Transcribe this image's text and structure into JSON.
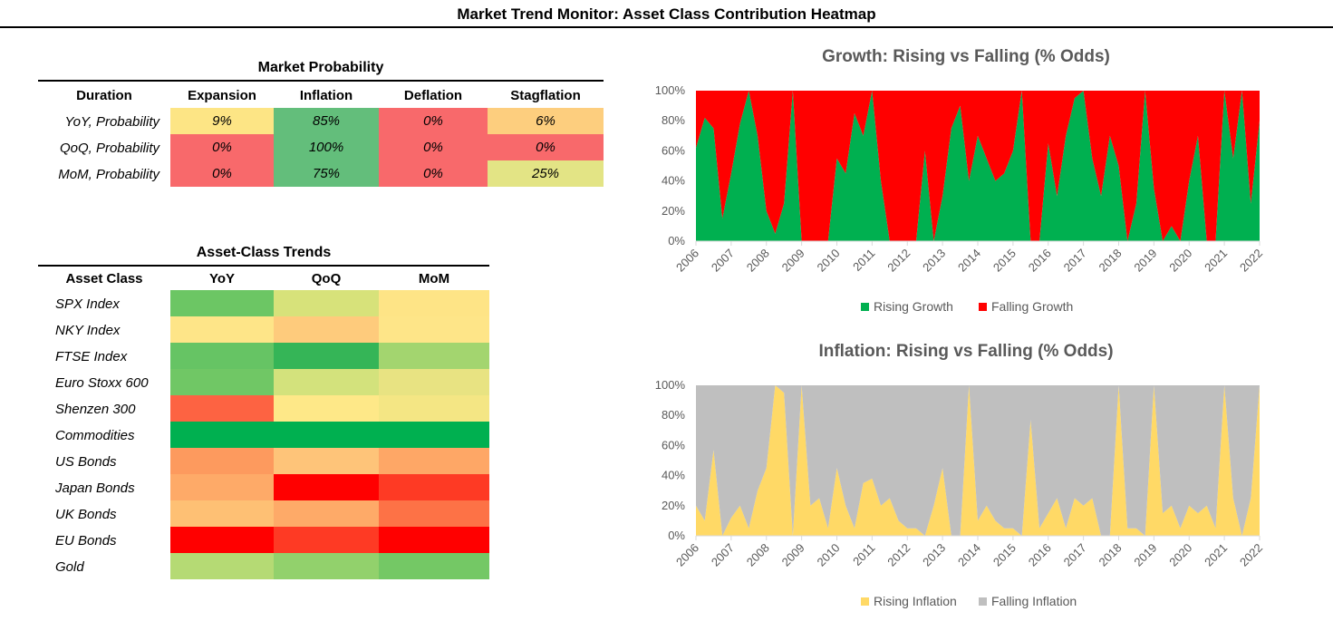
{
  "page_title": "Market Trend Monitor: Asset Class Contribution Heatmap",
  "market_probability": {
    "title": "Market Probability",
    "headers": [
      "Duration",
      "Expansion",
      "Inflation",
      "Deflation",
      "Stagflation"
    ],
    "rows": [
      {
        "label": "YoY, Probability",
        "values": [
          "9%",
          "85%",
          "0%",
          "6%"
        ],
        "colors": [
          "#FDE585",
          "#63BE7B",
          "#F8696B",
          "#FDCE7E"
        ]
      },
      {
        "label": "QoQ, Probability",
        "values": [
          "0%",
          "100%",
          "0%",
          "0%"
        ],
        "colors": [
          "#F8696B",
          "#63BE7B",
          "#F8696B",
          "#F8696B"
        ]
      },
      {
        "label": "MoM, Probability",
        "values": [
          "0%",
          "75%",
          "0%",
          "25%"
        ],
        "colors": [
          "#F8696B",
          "#63BE7B",
          "#F8696B",
          "#E3E485"
        ]
      }
    ]
  },
  "asset_class_trends": {
    "title": "Asset-Class Trends",
    "headers": [
      "Asset Class",
      "YoY",
      "QoQ",
      "MoM"
    ],
    "rows": [
      {
        "label": "SPX Index",
        "colors": [
          "#6CC664",
          "#D7E27A",
          "#FEE486"
        ]
      },
      {
        "label": "NKY Index",
        "colors": [
          "#FEE588",
          "#FECB7C",
          "#FEE588"
        ]
      },
      {
        "label": "FTSE Index",
        "colors": [
          "#66C464",
          "#35B557",
          "#A3D56F"
        ]
      },
      {
        "label": "Euro Stoxx 600",
        "colors": [
          "#70C765",
          "#D3E27C",
          "#E8E382"
        ]
      },
      {
        "label": "Shenzen 300",
        "colors": [
          "#FD6342",
          "#FEE888",
          "#F4E684"
        ]
      },
      {
        "label": "Commodities",
        "colors": [
          "#00B050",
          "#00B050",
          "#00B050"
        ]
      },
      {
        "label": "US Bonds",
        "colors": [
          "#FD9A5E",
          "#FEC479",
          "#FEA766"
        ]
      },
      {
        "label": "Japan Bonds",
        "colors": [
          "#FEAA68",
          "#FF0000",
          "#FE3A24"
        ]
      },
      {
        "label": "UK Bonds",
        "colors": [
          "#FEC074",
          "#FEAA68",
          "#FD7246"
        ]
      },
      {
        "label": "EU Bonds",
        "colors": [
          "#FF0000",
          "#FE3A24",
          "#FF0000"
        ]
      },
      {
        "label": "Gold",
        "colors": [
          "#B5DA74",
          "#92D16C",
          "#74C865"
        ]
      }
    ]
  },
  "chart_data": [
    {
      "type": "area",
      "stacked": true,
      "title": "Growth: Rising vs Falling (% Odds)",
      "x_ticks": [
        "2006",
        "2007",
        "2008",
        "2009",
        "2010",
        "2011",
        "2012",
        "2013",
        "2014",
        "2015",
        "2016",
        "2017",
        "2018",
        "2019",
        "2020",
        "2021",
        "2022"
      ],
      "y_ticks": [
        "0%",
        "20%",
        "40%",
        "60%",
        "80%",
        "100%"
      ],
      "ylim": [
        0,
        100
      ],
      "legend_position": "bottom",
      "series": [
        {
          "name": "Rising Growth",
          "color": "#00B050",
          "x": [
            2006.0,
            2006.25,
            2006.5,
            2006.75,
            2007.0,
            2007.25,
            2007.5,
            2007.75,
            2008.0,
            2008.25,
            2008.5,
            2008.75,
            2009.0,
            2009.25,
            2009.5,
            2009.75,
            2010.0,
            2010.25,
            2010.5,
            2010.75,
            2011.0,
            2011.25,
            2011.5,
            2011.75,
            2012.0,
            2012.25,
            2012.5,
            2012.75,
            2013.0,
            2013.25,
            2013.5,
            2013.75,
            2014.0,
            2014.25,
            2014.5,
            2014.75,
            2015.0,
            2015.25,
            2015.5,
            2015.75,
            2016.0,
            2016.25,
            2016.5,
            2016.75,
            2017.0,
            2017.25,
            2017.5,
            2017.75,
            2018.0,
            2018.25,
            2018.5,
            2018.75,
            2019.0,
            2019.25,
            2019.5,
            2019.75,
            2020.0,
            2020.25,
            2020.5,
            2020.75,
            2021.0,
            2021.25,
            2021.5,
            2021.75,
            2022.0
          ],
          "values": [
            62,
            82,
            75,
            15,
            45,
            78,
            100,
            70,
            20,
            5,
            25,
            100,
            0,
            0,
            0,
            0,
            55,
            45,
            85,
            70,
            100,
            40,
            0,
            0,
            0,
            0,
            60,
            0,
            30,
            75,
            90,
            40,
            70,
            55,
            40,
            45,
            60,
            100,
            0,
            0,
            65,
            30,
            70,
            95,
            100,
            55,
            30,
            70,
            50,
            0,
            25,
            100,
            35,
            0,
            10,
            0,
            40,
            70,
            0,
            0,
            100,
            55,
            100,
            25,
            80
          ]
        },
        {
          "name": "Falling Growth",
          "color": "#FF0000",
          "x": [
            2006.0,
            2006.25,
            2006.5,
            2006.75,
            2007.0,
            2007.25,
            2007.5,
            2007.75,
            2008.0,
            2008.25,
            2008.5,
            2008.75,
            2009.0,
            2009.25,
            2009.5,
            2009.75,
            2010.0,
            2010.25,
            2010.5,
            2010.75,
            2011.0,
            2011.25,
            2011.5,
            2011.75,
            2012.0,
            2012.25,
            2012.5,
            2012.75,
            2013.0,
            2013.25,
            2013.5,
            2013.75,
            2014.0,
            2014.25,
            2014.5,
            2014.75,
            2015.0,
            2015.25,
            2015.5,
            2015.75,
            2016.0,
            2016.25,
            2016.5,
            2016.75,
            2017.0,
            2017.25,
            2017.5,
            2017.75,
            2018.0,
            2018.25,
            2018.5,
            2018.75,
            2019.0,
            2019.25,
            2019.5,
            2019.75,
            2020.0,
            2020.25,
            2020.5,
            2020.75,
            2021.0,
            2021.25,
            2021.5,
            2021.75,
            2022.0
          ],
          "values": [
            38,
            18,
            25,
            85,
            55,
            22,
            0,
            30,
            80,
            95,
            75,
            0,
            100,
            100,
            100,
            100,
            45,
            55,
            15,
            30,
            0,
            60,
            100,
            100,
            100,
            100,
            40,
            100,
            70,
            25,
            10,
            60,
            30,
            45,
            60,
            55,
            40,
            0,
            100,
            100,
            35,
            70,
            30,
            5,
            0,
            45,
            70,
            30,
            50,
            100,
            75,
            0,
            65,
            100,
            90,
            100,
            60,
            30,
            100,
            100,
            0,
            45,
            0,
            75,
            20
          ]
        }
      ]
    },
    {
      "type": "area",
      "stacked": true,
      "title": "Inflation: Rising vs Falling  (% Odds)",
      "x_ticks": [
        "2006",
        "2007",
        "2008",
        "2009",
        "2010",
        "2011",
        "2012",
        "2013",
        "2014",
        "2015",
        "2016",
        "2017",
        "2018",
        "2019",
        "2020",
        "2021",
        "2022"
      ],
      "y_ticks": [
        "0%",
        "20%",
        "40%",
        "60%",
        "80%",
        "100%"
      ],
      "ylim": [
        0,
        100
      ],
      "legend_position": "bottom",
      "series": [
        {
          "name": "Rising Inflation",
          "color": "#FFD966",
          "x": [
            2006.0,
            2006.25,
            2006.5,
            2006.75,
            2007.0,
            2007.25,
            2007.5,
            2007.75,
            2008.0,
            2008.25,
            2008.5,
            2008.75,
            2009.0,
            2009.25,
            2009.5,
            2009.75,
            2010.0,
            2010.25,
            2010.5,
            2010.75,
            2011.0,
            2011.25,
            2011.5,
            2011.75,
            2012.0,
            2012.25,
            2012.5,
            2012.75,
            2013.0,
            2013.25,
            2013.5,
            2013.75,
            2014.0,
            2014.25,
            2014.5,
            2014.75,
            2015.0,
            2015.25,
            2015.5,
            2015.75,
            2016.0,
            2016.25,
            2016.5,
            2016.75,
            2017.0,
            2017.25,
            2017.5,
            2017.75,
            2018.0,
            2018.25,
            2018.5,
            2018.75,
            2019.0,
            2019.25,
            2019.5,
            2019.75,
            2020.0,
            2020.25,
            2020.5,
            2020.75,
            2021.0,
            2021.25,
            2021.5,
            2021.75,
            2022.0
          ],
          "values": [
            20,
            10,
            57,
            0,
            12,
            20,
            5,
            30,
            45,
            100,
            95,
            0,
            100,
            20,
            25,
            5,
            45,
            20,
            5,
            35,
            38,
            20,
            25,
            10,
            5,
            5,
            0,
            20,
            45,
            0,
            0,
            100,
            10,
            20,
            10,
            5,
            5,
            0,
            77,
            5,
            15,
            25,
            5,
            25,
            20,
            25,
            0,
            0,
            100,
            5,
            5,
            0,
            100,
            15,
            20,
            5,
            20,
            15,
            20,
            5,
            100,
            25,
            0,
            25,
            100
          ]
        },
        {
          "name": "Falling Inflation",
          "color": "#BFBFBF",
          "x": [
            2006.0,
            2006.25,
            2006.5,
            2006.75,
            2007.0,
            2007.25,
            2007.5,
            2007.75,
            2008.0,
            2008.25,
            2008.5,
            2008.75,
            2009.0,
            2009.25,
            2009.5,
            2009.75,
            2010.0,
            2010.25,
            2010.5,
            2010.75,
            2011.0,
            2011.25,
            2011.5,
            2011.75,
            2012.0,
            2012.25,
            2012.5,
            2012.75,
            2013.0,
            2013.25,
            2013.5,
            2013.75,
            2014.0,
            2014.25,
            2014.5,
            2014.75,
            2015.0,
            2015.25,
            2015.5,
            2015.75,
            2016.0,
            2016.25,
            2016.5,
            2016.75,
            2017.0,
            2017.25,
            2017.5,
            2017.75,
            2018.0,
            2018.25,
            2018.5,
            2018.75,
            2019.0,
            2019.25,
            2019.5,
            2019.75,
            2020.0,
            2020.25,
            2020.5,
            2020.75,
            2021.0,
            2021.25,
            2021.5,
            2021.75,
            2022.0
          ],
          "values": [
            80,
            90,
            43,
            100,
            88,
            80,
            95,
            70,
            55,
            0,
            5,
            100,
            0,
            80,
            75,
            95,
            55,
            80,
            95,
            65,
            62,
            80,
            75,
            90,
            95,
            95,
            100,
            80,
            55,
            100,
            100,
            0,
            90,
            80,
            90,
            95,
            95,
            100,
            23,
            95,
            85,
            75,
            95,
            75,
            80,
            75,
            100,
            100,
            0,
            95,
            95,
            100,
            0,
            85,
            80,
            95,
            80,
            85,
            80,
            95,
            0,
            75,
            100,
            75,
            0
          ]
        }
      ]
    }
  ]
}
